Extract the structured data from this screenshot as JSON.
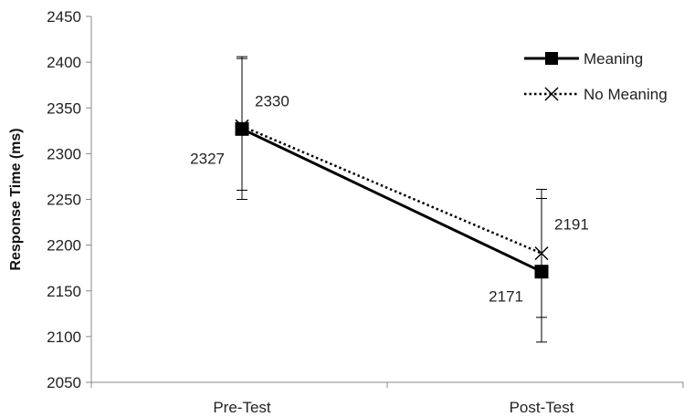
{
  "chart_data": {
    "type": "line",
    "title": "",
    "xlabel": "",
    "ylabel": "Response Time (ms)",
    "categories": [
      "Pre-Test",
      "Post-Test"
    ],
    "ylim": [
      2050,
      2450
    ],
    "yticks": [
      2050,
      2100,
      2150,
      2200,
      2250,
      2300,
      2350,
      2400,
      2450
    ],
    "grid": false,
    "legend_position": "top-right",
    "series": [
      {
        "name": "Meaning",
        "values": [
          2327,
          2171
        ],
        "error_low": [
          2250,
          2121
        ],
        "error_high": [
          2404,
          2251
        ],
        "labels": [
          "2327",
          "2171"
        ],
        "line_style": "solid",
        "marker": "square",
        "color": "#000000"
      },
      {
        "name": "No Meaning",
        "values": [
          2330,
          2191
        ],
        "error_low": [
          2260,
          2094
        ],
        "error_high": [
          2406,
          2261
        ],
        "labels": [
          "2330",
          "2191"
        ],
        "line_style": "dotted",
        "marker": "x",
        "color": "#000000"
      }
    ]
  }
}
